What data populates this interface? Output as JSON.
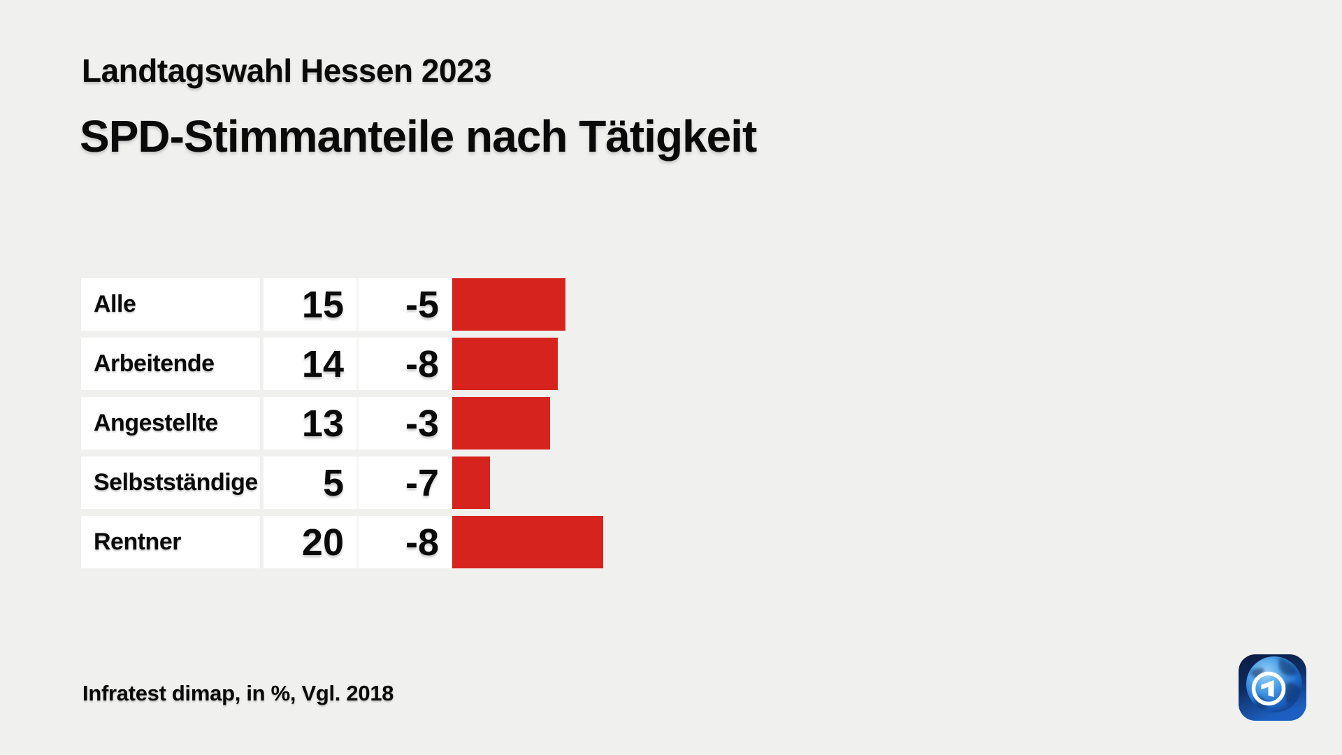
{
  "header": {
    "subtitle": "Landtagswahl Hessen 2023",
    "title": "SPD-Stimmanteile nach Tätigkeit"
  },
  "footer": {
    "source": "Infratest dimap, in %, Vgl. 2018"
  },
  "logo": {
    "icon": "ard-globe-logo",
    "colors": {
      "tile_dark": "#0a1a3e",
      "tile_mid": "#123a7e",
      "tile_bright": "#1d5fc0",
      "globe_highlight": "#9fd4f7",
      "globe_mid": "#3f98e4",
      "globe_deep": "#0b2f72",
      "ring": "#ffffff"
    }
  },
  "chart_data": {
    "type": "bar",
    "title": "SPD-Stimmanteile nach Tätigkeit",
    "subtitle": "Landtagswahl Hessen 2023",
    "source": "Infratest dimap, in %, Vgl. 2018",
    "unit": "%",
    "orientation": "horizontal",
    "legend": "none",
    "grid": false,
    "value_range": [
      0,
      20
    ],
    "categories": [
      "Alle",
      "Arbeitende",
      "Angestellte",
      "Selbstständige",
      "Rentner"
    ],
    "values": [
      15,
      14,
      13,
      5,
      20
    ],
    "deltas": [
      -5,
      -8,
      -3,
      -7,
      -8
    ],
    "delta_labels": [
      "-5",
      "-8",
      "-3",
      "-7",
      "-8"
    ],
    "bar_color": "#d6231e"
  }
}
